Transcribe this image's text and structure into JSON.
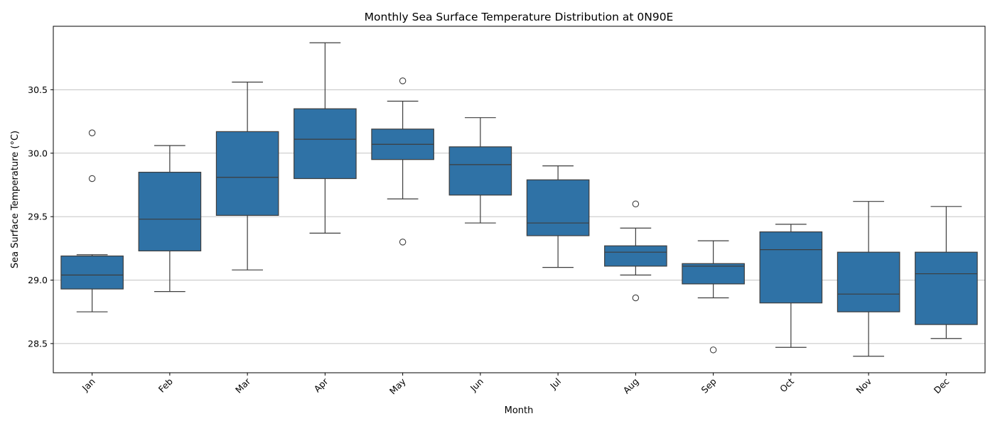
{
  "chart_data": {
    "type": "box",
    "title": "Monthly Sea Surface Temperature Distribution at 0N90E",
    "xlabel": "Month",
    "ylabel": "Sea Surface Temperature (°C)",
    "ylim": [
      28.27,
      31.0
    ],
    "yticks": [
      28.5,
      29.0,
      29.5,
      30.0,
      30.5
    ],
    "yticks_labels": [
      "28.5",
      "29.0",
      "29.5",
      "30.0",
      "30.5"
    ],
    "grid": "y",
    "box_color": "#2f72a6",
    "line_color": "#3d3d3d",
    "categories": [
      "Jan",
      "Feb",
      "Mar",
      "Apr",
      "May",
      "Jun",
      "Jul",
      "Aug",
      "Sep",
      "Oct",
      "Nov",
      "Dec"
    ],
    "boxes": [
      {
        "whisker_low": 28.75,
        "q1": 28.93,
        "median": 29.04,
        "q3": 29.19,
        "whisker_high": 29.2,
        "outliers": [
          29.8,
          30.16
        ]
      },
      {
        "whisker_low": 28.91,
        "q1": 29.23,
        "median": 29.48,
        "q3": 29.85,
        "whisker_high": 30.06,
        "outliers": []
      },
      {
        "whisker_low": 29.08,
        "q1": 29.51,
        "median": 29.81,
        "q3": 30.17,
        "whisker_high": 30.56,
        "outliers": []
      },
      {
        "whisker_low": 29.37,
        "q1": 29.8,
        "median": 30.11,
        "q3": 30.35,
        "whisker_high": 30.87,
        "outliers": []
      },
      {
        "whisker_low": 29.64,
        "q1": 29.95,
        "median": 30.07,
        "q3": 30.19,
        "whisker_high": 30.41,
        "outliers": [
          30.57,
          29.3
        ]
      },
      {
        "whisker_low": 29.45,
        "q1": 29.67,
        "median": 29.91,
        "q3": 30.05,
        "whisker_high": 30.28,
        "outliers": []
      },
      {
        "whisker_low": 29.1,
        "q1": 29.35,
        "median": 29.45,
        "q3": 29.79,
        "whisker_high": 29.9,
        "outliers": []
      },
      {
        "whisker_low": 29.04,
        "q1": 29.11,
        "median": 29.22,
        "q3": 29.27,
        "whisker_high": 29.41,
        "outliers": [
          29.6,
          28.86
        ]
      },
      {
        "whisker_low": 28.86,
        "q1": 28.97,
        "median": 29.11,
        "q3": 29.13,
        "whisker_high": 29.31,
        "outliers": [
          28.45
        ]
      },
      {
        "whisker_low": 28.47,
        "q1": 28.82,
        "median": 29.24,
        "q3": 29.38,
        "whisker_high": 29.44,
        "outliers": []
      },
      {
        "whisker_low": 28.4,
        "q1": 28.75,
        "median": 28.89,
        "q3": 29.22,
        "whisker_high": 29.62,
        "outliers": []
      },
      {
        "whisker_low": 28.54,
        "q1": 28.65,
        "median": 29.05,
        "q3": 29.22,
        "whisker_high": 29.58,
        "outliers": []
      }
    ]
  }
}
